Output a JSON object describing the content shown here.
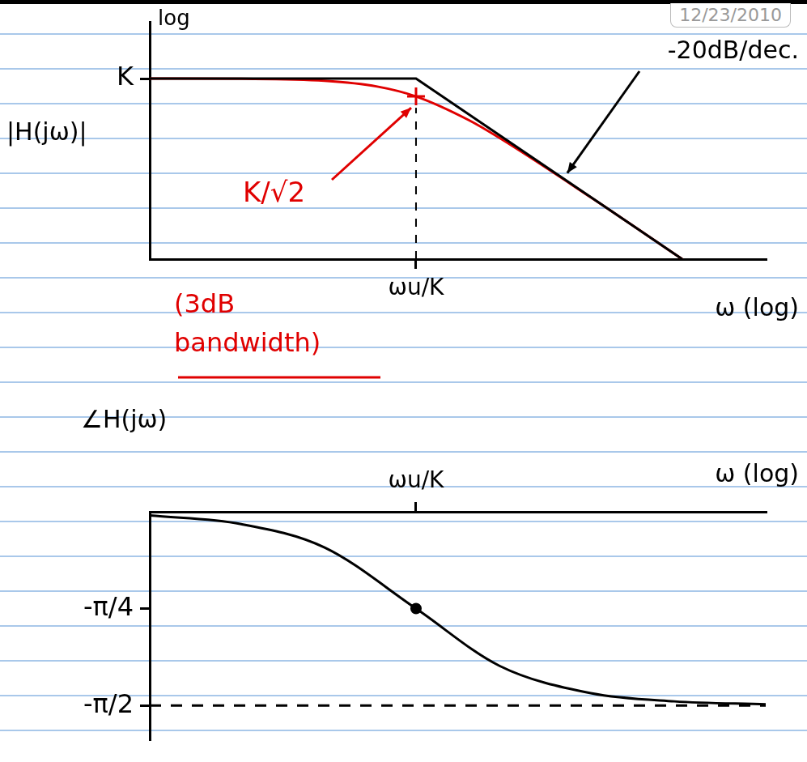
{
  "date": "12/23/2010",
  "chart_data": [
    {
      "type": "line",
      "y_axis_note": "log",
      "y_label": "|H(jω)|",
      "x_label": "ω (log)",
      "log": true,
      "grid": false,
      "xlim": [
        0.03,
        100
      ],
      "xticks": [
        {
          "value": 1,
          "label": "ωu/K"
        }
      ],
      "ylim": [
        0.03,
        3
      ],
      "yticks": [
        {
          "value": 1,
          "label": "K"
        }
      ],
      "series": [
        {
          "color": "#000000",
          "line_style": "straight",
          "x": [
            0.03,
            1,
            33.3
          ],
          "values": [
            1,
            1,
            0.03
          ]
        },
        {
          "color": "#e00000",
          "line_style": "curved",
          "x": [
            0.03,
            0.1,
            0.3,
            0.6,
            1,
            2,
            3,
            10,
            33.3
          ],
          "values": [
            1,
            0.995,
            0.958,
            0.857,
            0.707,
            0.447,
            0.316,
            0.0995,
            0.03
          ]
        },
        {
          "color": "#e00000",
          "line_style": "none",
          "marker": "cross",
          "x": [
            1
          ],
          "values": [
            0.707
          ]
        }
      ],
      "annotations": [
        {
          "text": "K/√2",
          "color": "#e00000"
        },
        {
          "text": "-20dB/dec.",
          "color": "#000000"
        },
        {
          "text": "(3dB bandwidth)",
          "color": "#e00000"
        }
      ]
    },
    {
      "type": "line",
      "y_label": "∠H(jω)",
      "x_label": "ω (log)",
      "log": "x",
      "grid": false,
      "xlim": [
        0.03,
        100
      ],
      "xticks": [
        {
          "value": 1,
          "label": "ωu/K"
        }
      ],
      "ylim": [
        -1.85,
        0
      ],
      "yticks": [
        {
          "value": -0.785,
          "label": "-π/4"
        },
        {
          "value": -1.571,
          "label": "-π/2"
        }
      ],
      "series": [
        {
          "color": "#000000",
          "line_style": "curved",
          "x": [
            0.03,
            0.1,
            0.3,
            1,
            3,
            10,
            30,
            100
          ],
          "values": [
            -0.03,
            -0.1,
            -0.29,
            -0.785,
            -1.249,
            -1.471,
            -1.537,
            -1.561
          ]
        },
        {
          "color": "#000000",
          "line_style": "none",
          "marker": "dot",
          "x": [
            1
          ],
          "values": [
            -0.785
          ]
        },
        {
          "color": "#000000",
          "line_style": "dashed",
          "x": [
            0.03,
            100
          ],
          "values": [
            -1.571,
            -1.571
          ]
        }
      ]
    }
  ]
}
